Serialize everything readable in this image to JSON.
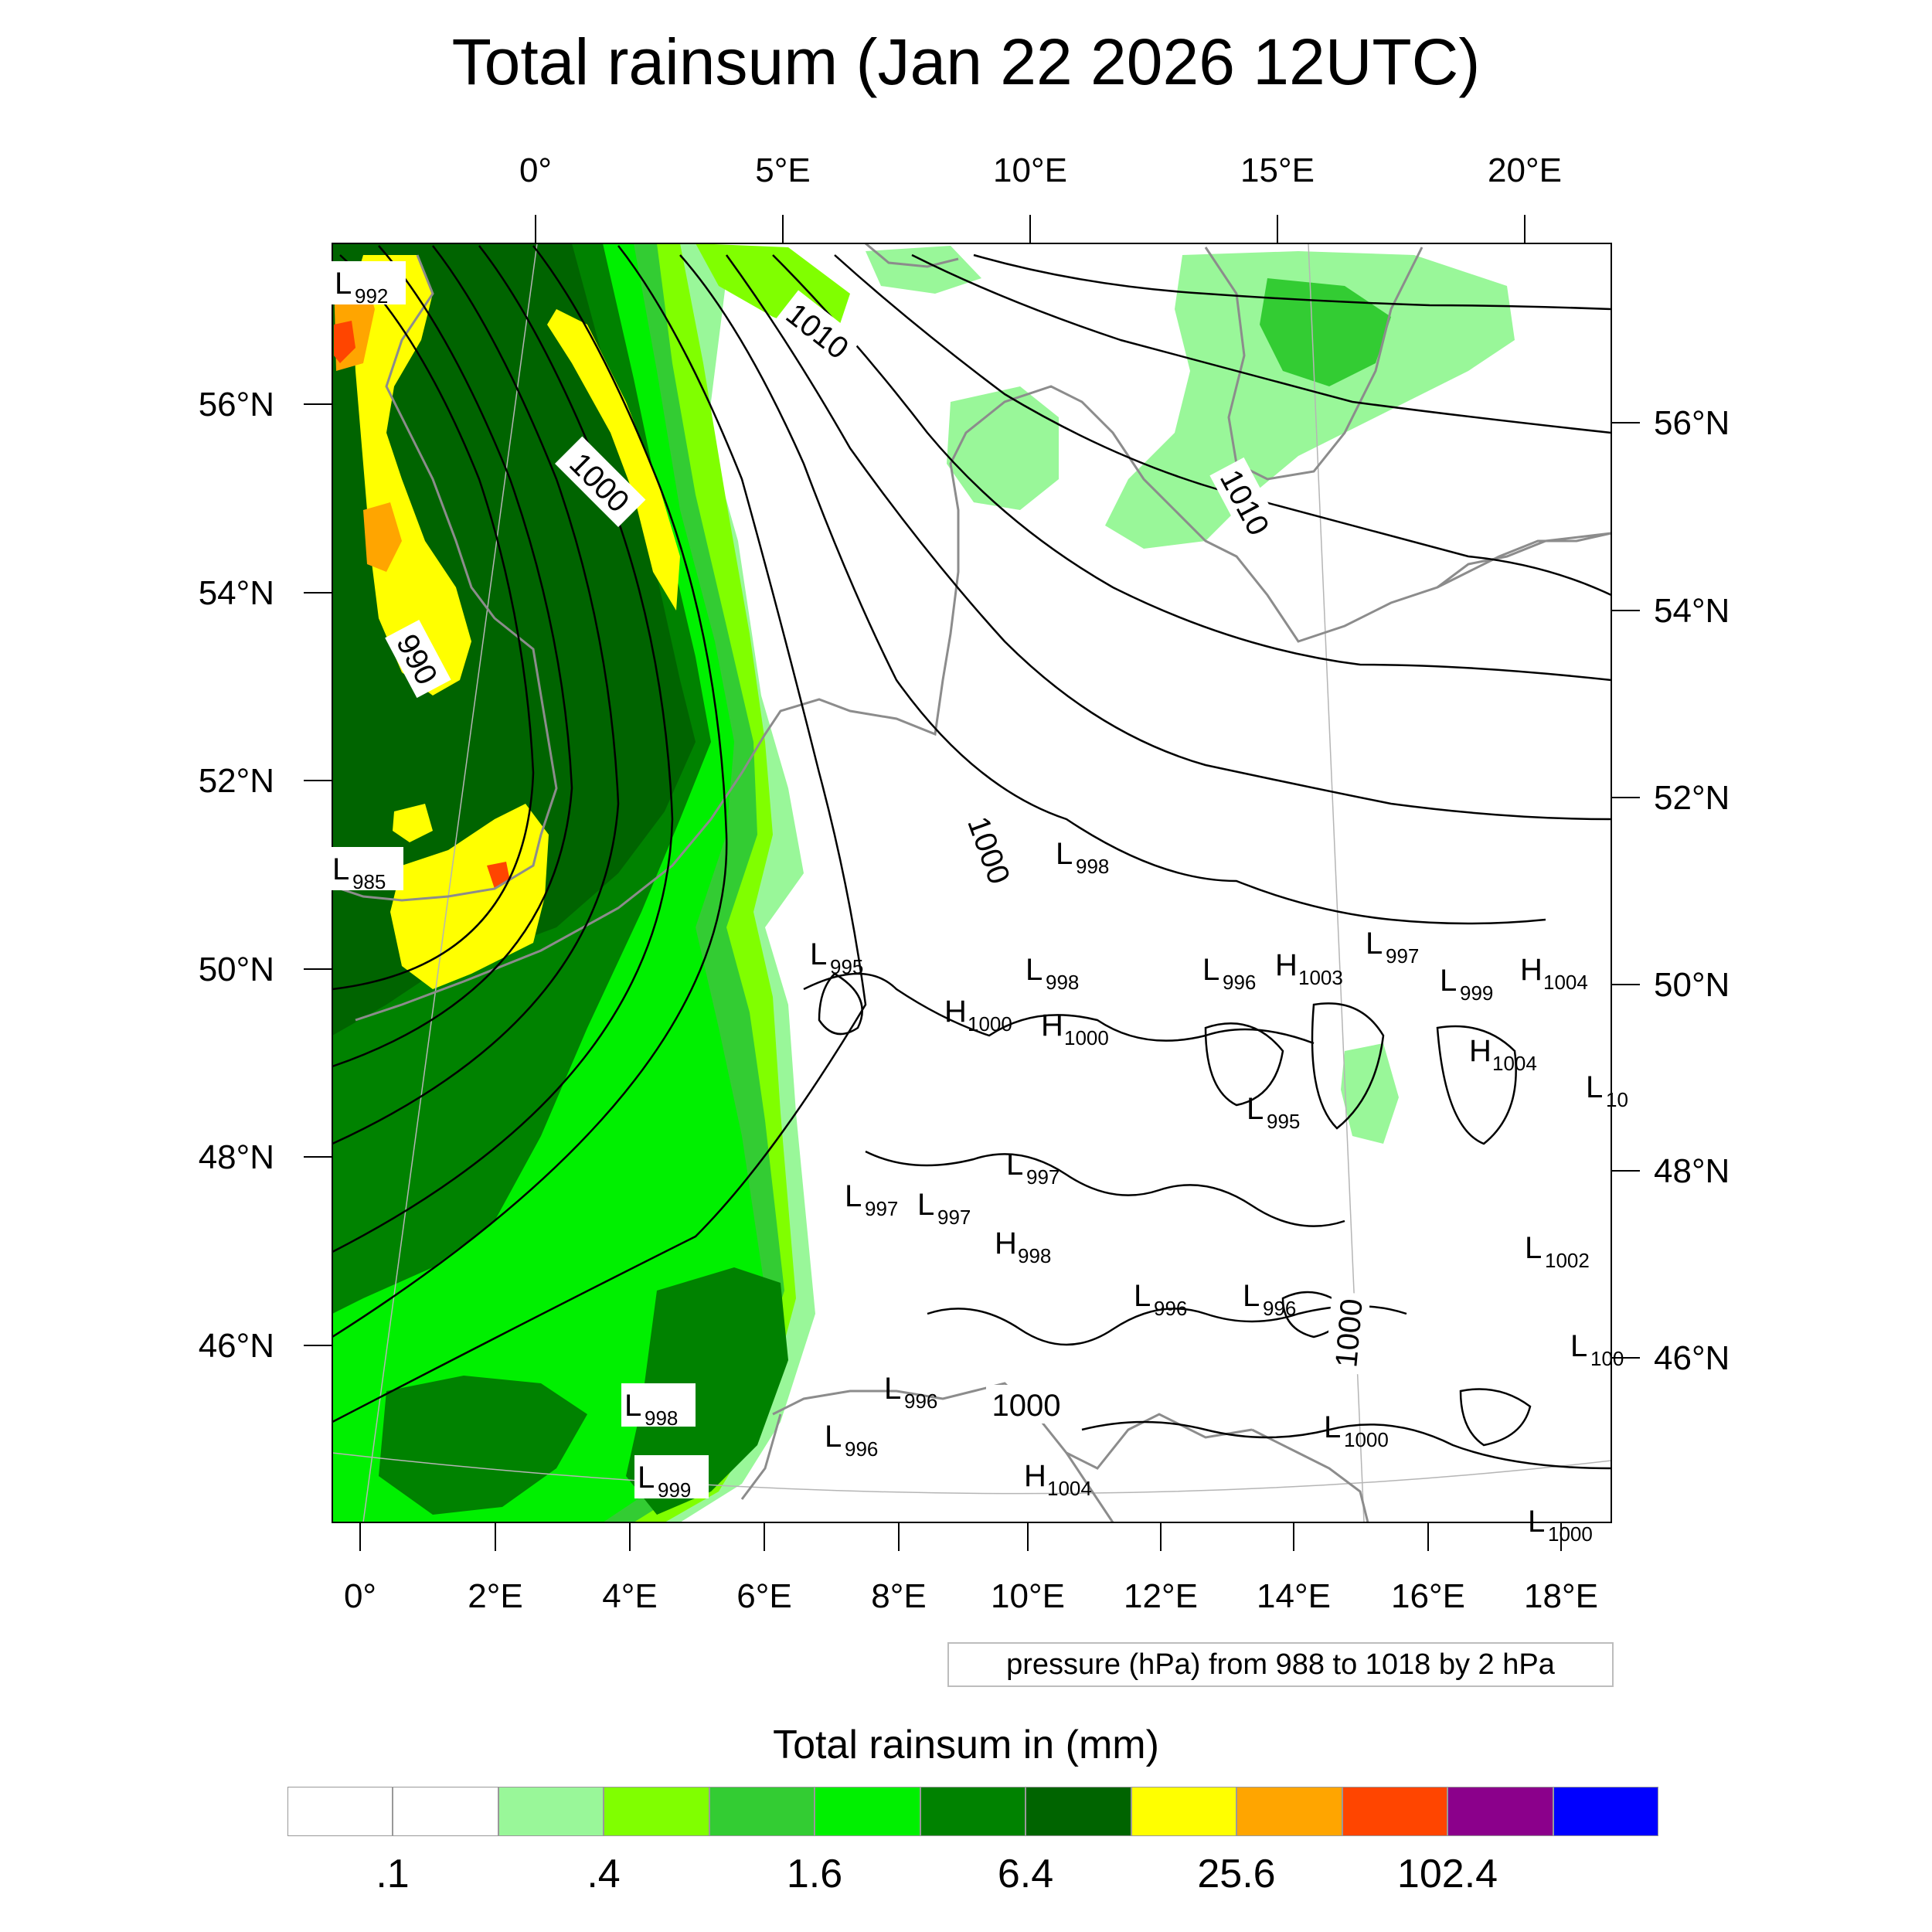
{
  "title": "Total rainsum (Jan 22 2026 12UTC)",
  "map": {
    "region": "Western and Central Europe",
    "top_axis_labels": [
      "0°",
      "5°E",
      "10°E",
      "15°E",
      "20°E"
    ],
    "bottom_axis_labels": [
      "0°",
      "2°E",
      "4°E",
      "6°E",
      "8°E",
      "10°E",
      "12°E",
      "14°E",
      "16°E",
      "18°E"
    ],
    "left_axis_labels": [
      "56°N",
      "54°N",
      "52°N",
      "50°N",
      "48°N",
      "46°N"
    ],
    "right_axis_labels": [
      "56°N",
      "54°N",
      "52°N",
      "50°N",
      "48°N",
      "46°N"
    ],
    "contour_labels": [
      "1010",
      "1000",
      "990",
      "1010",
      "1000",
      "1000",
      "1000"
    ],
    "pressure_centers": [
      {
        "type": "L",
        "value": "992"
      },
      {
        "type": "L",
        "value": "985"
      },
      {
        "type": "L",
        "value": "998"
      },
      {
        "type": "L",
        "value": "999"
      },
      {
        "type": "L",
        "value": "998"
      },
      {
        "type": "L",
        "value": "995"
      },
      {
        "type": "L",
        "value": "998"
      },
      {
        "type": "H",
        "value": "1000"
      },
      {
        "type": "H",
        "value": "1000"
      },
      {
        "type": "L",
        "value": "996"
      },
      {
        "type": "H",
        "value": "1003"
      },
      {
        "type": "L",
        "value": "997"
      },
      {
        "type": "L",
        "value": "999"
      },
      {
        "type": "H",
        "value": "1004"
      },
      {
        "type": "H",
        "value": "1004"
      },
      {
        "type": "L",
        "value": "10"
      },
      {
        "type": "L",
        "value": "995"
      },
      {
        "type": "L",
        "value": "997"
      },
      {
        "type": "L",
        "value": "997"
      },
      {
        "type": "L",
        "value": "997"
      },
      {
        "type": "H",
        "value": "998"
      },
      {
        "type": "L",
        "value": "1002"
      },
      {
        "type": "L",
        "value": "996"
      },
      {
        "type": "L",
        "value": "996"
      },
      {
        "type": "L",
        "value": "100"
      },
      {
        "type": "L",
        "value": "996"
      },
      {
        "type": "L",
        "value": "996"
      },
      {
        "type": "L",
        "value": "1000"
      },
      {
        "type": "H",
        "value": "1004"
      },
      {
        "type": "L",
        "value": "1000"
      }
    ]
  },
  "info_box": "pressure (hPa) from 988 to 1018 by 2 hPa",
  "legend": {
    "title": "Total rainsum in (mm)",
    "colors": [
      "#ffffff",
      "#ffffff",
      "#99f799",
      "#80ff00",
      "#33cc33",
      "#00f000",
      "#008200",
      "#006400",
      "#ffff00",
      "#ffa500",
      "#ff4500",
      "#8b008b",
      "#0000ff"
    ],
    "labels": [
      ".1",
      ".4",
      "1.6",
      "6.4",
      "25.6",
      "102.4"
    ]
  }
}
